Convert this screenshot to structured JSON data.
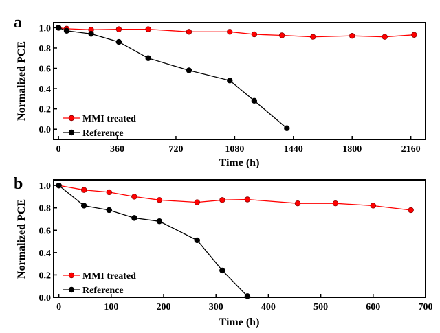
{
  "chart_data": [
    {
      "type": "line",
      "panel_label": "a",
      "xlabel": "Time (h)",
      "ylabel": "Normalized PCE",
      "xlim": [
        -30,
        2250
      ],
      "ylim": [
        -0.1,
        1.05
      ],
      "xticks": [
        0,
        360,
        720,
        1080,
        1440,
        1800,
        2160
      ],
      "yticks": [
        0.0,
        0.2,
        0.4,
        0.6,
        0.8,
        1.0
      ],
      "ytick_labels": [
        "0.0",
        "0.2",
        "0.4",
        "0.6",
        "0.8",
        "1.0"
      ],
      "legend_position": "bottom-left",
      "series": [
        {
          "name": "MMI treated",
          "color": "#ff0000",
          "x": [
            0,
            50,
            200,
            370,
            550,
            800,
            1050,
            1200,
            1370,
            1560,
            1800,
            2000,
            2180
          ],
          "y": [
            1.0,
            0.99,
            0.98,
            0.985,
            0.985,
            0.96,
            0.96,
            0.935,
            0.925,
            0.91,
            0.92,
            0.91,
            0.93
          ]
        },
        {
          "name": "Reference",
          "color": "#000000",
          "x": [
            0,
            50,
            200,
            370,
            550,
            800,
            1050,
            1200,
            1400
          ],
          "y": [
            1.0,
            0.97,
            0.94,
            0.86,
            0.7,
            0.58,
            0.48,
            0.28,
            0.01
          ]
        }
      ]
    },
    {
      "type": "line",
      "panel_label": "b",
      "xlabel": "Time (h)",
      "ylabel": "Normalized PCE",
      "xlim": [
        -10,
        700
      ],
      "ylim": [
        0.0,
        1.05
      ],
      "xticks": [
        0,
        100,
        200,
        300,
        400,
        500,
        600,
        700
      ],
      "yticks": [
        0.0,
        0.2,
        0.4,
        0.6,
        0.8,
        1.0
      ],
      "ytick_labels": [
        "0.0",
        "0.2",
        "0.4",
        "0.6",
        "0.8",
        "1.0"
      ],
      "legend_position": "bottom-left",
      "series": [
        {
          "name": "MMI treated",
          "color": "#ff0000",
          "x": [
            0,
            48,
            96,
            144,
            192,
            264,
            312,
            360,
            456,
            528,
            600,
            672
          ],
          "y": [
            1.0,
            0.96,
            0.94,
            0.9,
            0.87,
            0.85,
            0.87,
            0.875,
            0.84,
            0.84,
            0.82,
            0.78
          ]
        },
        {
          "name": "Reference",
          "color": "#000000",
          "x": [
            0,
            48,
            96,
            144,
            192,
            264,
            312,
            360
          ],
          "y": [
            1.0,
            0.82,
            0.78,
            0.71,
            0.68,
            0.51,
            0.24,
            0.01
          ]
        }
      ]
    }
  ]
}
